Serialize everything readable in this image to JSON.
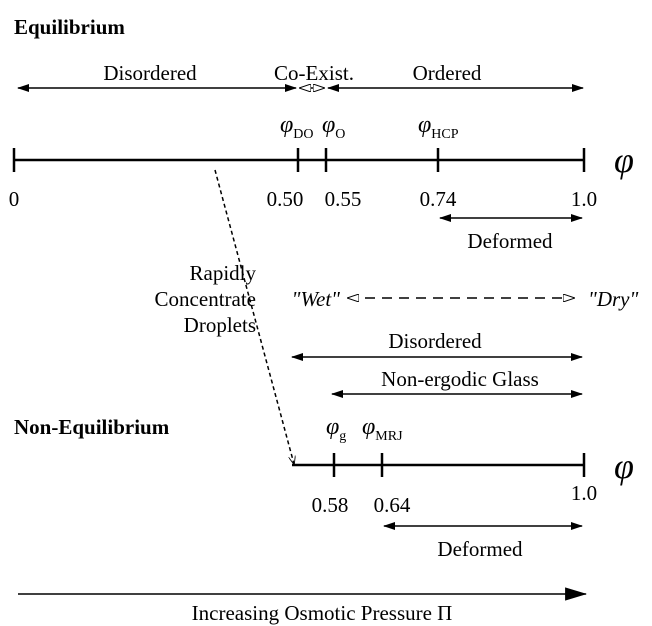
{
  "sections": {
    "equilibrium": {
      "heading": "Equilibrium",
      "regions": [
        "Disordered",
        "Co-Exist.",
        "Ordered"
      ],
      "points": [
        {
          "symbol": "φ",
          "sub": "DO"
        },
        {
          "symbol": "φ",
          "sub": "O"
        },
        {
          "symbol": "φ",
          "sub": "HCP"
        }
      ],
      "axis_symbol": "φ",
      "ticks": [
        "0",
        "0.50",
        "0.55",
        "0.74",
        "1.0"
      ],
      "deformed": "Deformed"
    },
    "process": [
      "Rapidly",
      "Concentrate",
      "Droplets"
    ],
    "wet": "\"Wet\"",
    "dry": "\"Dry\"",
    "non_equilibrium": {
      "heading": "Non-Equilibrium",
      "disordered": "Disordered",
      "glass": "Non-ergodic Glass",
      "points": [
        {
          "symbol": "φ",
          "sub": "g"
        },
        {
          "symbol": "φ",
          "sub": "MRJ"
        }
      ],
      "axis_symbol": "φ",
      "ticks": [
        "0.58",
        "0.64",
        "1.0"
      ],
      "deformed": "Deformed"
    },
    "pressure": "Increasing Osmotic Pressure Π"
  }
}
